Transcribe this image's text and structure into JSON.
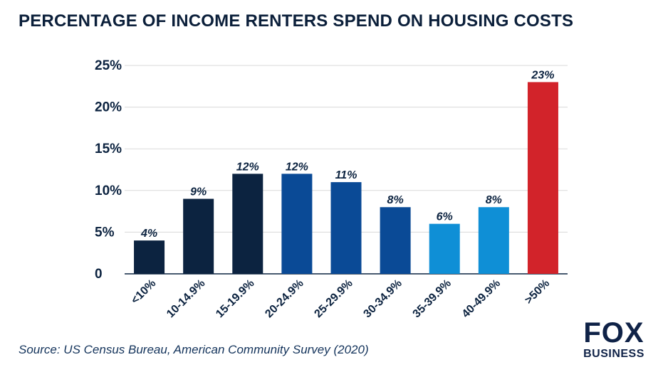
{
  "chart_data": {
    "type": "bar",
    "title": "PERCENTAGE OF INCOME RENTERS SPEND ON HOUSING COSTS",
    "categories": [
      "<10%",
      "10-14.9%",
      "15-19.9%",
      "20-24.9%",
      "25-29.9%",
      "30-34.9%",
      "35-39.9%",
      "40-49.9%",
      ">50%"
    ],
    "values": [
      4,
      9,
      12,
      12,
      11,
      8,
      6,
      8,
      23
    ],
    "value_labels": [
      "4%",
      "9%",
      "12%",
      "12%",
      "11%",
      "8%",
      "6%",
      "8%",
      "23%"
    ],
    "bar_colors": [
      "#0c2340",
      "#0c2340",
      "#0c2340",
      "#0a4a96",
      "#0a4a96",
      "#0a4a96",
      "#0f8fd6",
      "#0f8fd6",
      "#d2232a"
    ],
    "yticks": [
      "0",
      "5%",
      "10%",
      "15%",
      "20%",
      "25%"
    ],
    "ylim": [
      0,
      25
    ],
    "grid": true,
    "xlabel": "",
    "ylabel": ""
  },
  "source": "Source: US Census Bureau, American Community Survey (2020)",
  "logo": {
    "text_top": "FOX",
    "text_bottom": "BUSINESS"
  }
}
